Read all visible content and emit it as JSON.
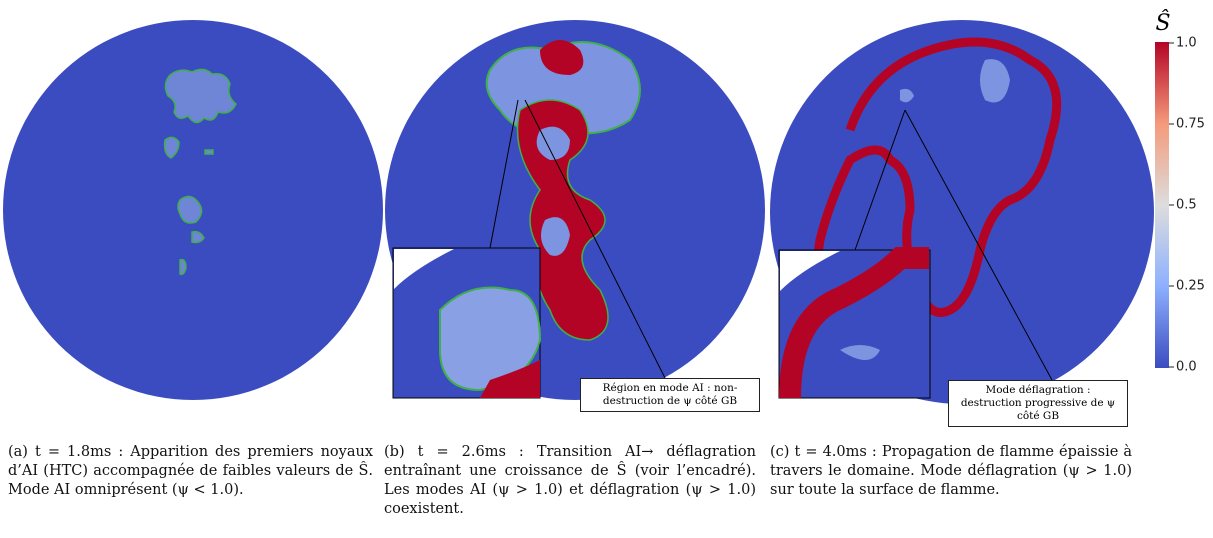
{
  "colorbar": {
    "title": "Ŝ",
    "ticks": [
      "1.0",
      "0.75",
      "0.5",
      "0.25",
      "0.0"
    ]
  },
  "panels": [
    {
      "caption": "(a) t = 1.8ms : Apparition des premiers noyaux d’AI (HTC) accompagnée de faibles valeurs de Ŝ. Mode AI omniprésent (ψ < 1.0)."
    },
    {
      "caption": "(b) t = 2.6ms : Transition AI→ déflagration entraînant une croissance de Ŝ (voir l’encadré). Les modes AI (ψ > 1.0) et déflagration (ψ > 1.0) coexistent.",
      "annotation": "Région en mode AI : non-destruction de ψ côté GB"
    },
    {
      "caption": "(c) t = 4.0ms : Propagation de flamme épaissie à travers le domaine. Mode déflagration (ψ > 1.0) sur toute la surface de flamme.",
      "annotation": "Mode déflagration : destruction progressive de ψ côté GB"
    }
  ]
}
